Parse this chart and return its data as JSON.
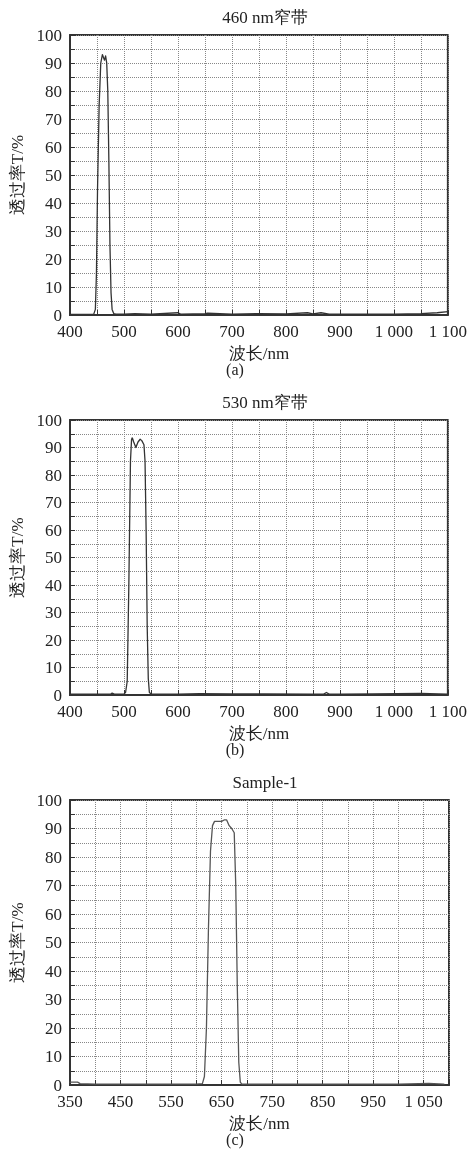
{
  "chart_data": [
    {
      "type": "line",
      "title": "460 nm窄带",
      "xlabel": "波长/nm",
      "ylabel": "透过率T/%",
      "annotations": [
        "(a)"
      ],
      "grid": true,
      "marker": "none",
      "line_style": "solid",
      "xlim": [
        400,
        1100
      ],
      "xticks": [
        400,
        {
          "value": 450,
          "label": null
        },
        500,
        {
          "value": 550,
          "label": null
        },
        600,
        {
          "value": 650,
          "label": null
        },
        700,
        {
          "value": 750,
          "label": null
        },
        800,
        {
          "value": 850,
          "label": null
        },
        900,
        {
          "value": 950,
          "label": null
        },
        {
          "value": 1000,
          "label": "1 000"
        },
        {
          "value": 1050,
          "label": null
        },
        {
          "value": 1100,
          "label": "1 100"
        }
      ],
      "ylim": [
        0,
        100
      ],
      "yticks": [
        0,
        {
          "value": 5,
          "label": null
        },
        10,
        {
          "value": 15,
          "label": null
        },
        20,
        {
          "value": 25,
          "label": null
        },
        30,
        {
          "value": 35,
          "label": null
        },
        40,
        {
          "value": 45,
          "label": null
        },
        50,
        {
          "value": 55,
          "label": null
        },
        60,
        {
          "value": 65,
          "label": null
        },
        70,
        {
          "value": 75,
          "label": null
        },
        80,
        {
          "value": 85,
          "label": null
        },
        90,
        {
          "value": 95,
          "label": null
        },
        100
      ],
      "series": [
        {
          "color": "#333333",
          "x": [
            400,
            430,
            444,
            447,
            449,
            451,
            454,
            457,
            460,
            462,
            464,
            466,
            468,
            470,
            472,
            474,
            476,
            478,
            481,
            485,
            500,
            520,
            550,
            600,
            605,
            650,
            655,
            700,
            750,
            800,
            840,
            850,
            865,
            880,
            900,
            950,
            1000,
            1050,
            1080,
            1100
          ],
          "values": [
            0.2,
            0.2,
            0.3,
            2,
            15,
            45,
            75,
            90,
            93,
            92,
            91,
            92.5,
            90,
            80,
            55,
            25,
            8,
            2,
            0.5,
            0.3,
            0.3,
            0.5,
            0.3,
            0.8,
            0.3,
            0.5,
            0.7,
            0.3,
            0.5,
            0.4,
            0.8,
            0.4,
            0.8,
            0.3,
            0.3,
            0.3,
            0.3,
            0.5,
            0.8,
            1.2
          ]
        }
      ]
    },
    {
      "type": "line",
      "title": "530 nm窄带",
      "xlabel": "波长/nm",
      "ylabel": "透过率T/%",
      "annotations": [
        "(b)"
      ],
      "grid": true,
      "marker": "none",
      "line_style": "solid",
      "xlim": [
        400,
        1100
      ],
      "xticks": [
        400,
        {
          "value": 450,
          "label": null
        },
        500,
        {
          "value": 550,
          "label": null
        },
        600,
        {
          "value": 650,
          "label": null
        },
        700,
        {
          "value": 750,
          "label": null
        },
        800,
        {
          "value": 850,
          "label": null
        },
        900,
        {
          "value": 950,
          "label": null
        },
        {
          "value": 1000,
          "label": "1 000"
        },
        {
          "value": 1050,
          "label": null
        },
        {
          "value": 1100,
          "label": "1 100"
        }
      ],
      "ylim": [
        0,
        100
      ],
      "yticks": [
        0,
        {
          "value": 5,
          "label": null
        },
        10,
        {
          "value": 15,
          "label": null
        },
        20,
        {
          "value": 25,
          "label": null
        },
        30,
        {
          "value": 35,
          "label": null
        },
        40,
        {
          "value": 45,
          "label": null
        },
        50,
        {
          "value": 55,
          "label": null
        },
        60,
        {
          "value": 65,
          "label": null
        },
        70,
        {
          "value": 75,
          "label": null
        },
        80,
        {
          "value": 85,
          "label": null
        },
        90,
        {
          "value": 95,
          "label": null
        },
        100
      ],
      "series": [
        {
          "color": "#333333",
          "x": [
            400,
            450,
            475,
            478,
            482,
            500,
            503,
            506,
            509,
            512,
            514,
            515,
            516,
            518,
            522,
            526,
            530,
            533,
            537,
            539,
            541,
            543,
            545,
            547,
            550,
            600,
            640,
            700,
            760,
            850,
            870,
            875,
            880,
            900,
            960,
            1050,
            1100
          ],
          "values": [
            0.3,
            0.3,
            0.3,
            0.7,
            0.3,
            0.3,
            1,
            5,
            40,
            85,
            92.8,
            93.5,
            93.2,
            92,
            90,
            92,
            93,
            92.5,
            91,
            85,
            60,
            25,
            6,
            1,
            0.3,
            0.3,
            0.5,
            0.4,
            0.4,
            0.3,
            0.3,
            0.9,
            0.3,
            0.3,
            0.4,
            0.6,
            0.3
          ]
        }
      ]
    },
    {
      "type": "line",
      "title": "Sample-1",
      "xlabel": "波长/nm",
      "ylabel": "透过率T/%",
      "annotations": [
        "(c)"
      ],
      "grid": true,
      "marker": "none",
      "line_style": "solid",
      "xlim": [
        350,
        1100
      ],
      "xticks": [
        350,
        {
          "value": 400,
          "label": null
        },
        450,
        {
          "value": 500,
          "label": null
        },
        550,
        {
          "value": 600,
          "label": null
        },
        650,
        {
          "value": 700,
          "label": null
        },
        750,
        {
          "value": 800,
          "label": null
        },
        850,
        {
          "value": 900,
          "label": null
        },
        950,
        {
          "value": 1000,
          "label": null
        },
        {
          "value": 1050,
          "label": "1 050"
        },
        {
          "value": 1100,
          "label": null
        }
      ],
      "ylim": [
        0,
        100
      ],
      "yticks": [
        0,
        {
          "value": 5,
          "label": null
        },
        10,
        {
          "value": 15,
          "label": null
        },
        20,
        {
          "value": 25,
          "label": null
        },
        30,
        {
          "value": 35,
          "label": null
        },
        40,
        {
          "value": 45,
          "label": null
        },
        50,
        {
          "value": 55,
          "label": null
        },
        60,
        {
          "value": 65,
          "label": null
        },
        70,
        {
          "value": 75,
          "label": null
        },
        80,
        {
          "value": 85,
          "label": null
        },
        90,
        {
          "value": 95,
          "label": null
        },
        100
      ],
      "series": [
        {
          "color": "#555555",
          "x": [
            350,
            365,
            370,
            400,
            500,
            600,
            612,
            616,
            620,
            624,
            628,
            632,
            636,
            645,
            650,
            655,
            660,
            665,
            670,
            675,
            678,
            681,
            684,
            687,
            690,
            700,
            800,
            1000,
            1060,
            1090
          ],
          "values": [
            1,
            1,
            0.5,
            0.3,
            0.3,
            0.3,
            0.5,
            3,
            20,
            55,
            82,
            91,
            92.5,
            92.5,
            92.5,
            93,
            93,
            91,
            90,
            88.5,
            70,
            35,
            8,
            1,
            0.3,
            0.3,
            0.3,
            0.3,
            0.6,
            0.3
          ]
        }
      ]
    }
  ]
}
